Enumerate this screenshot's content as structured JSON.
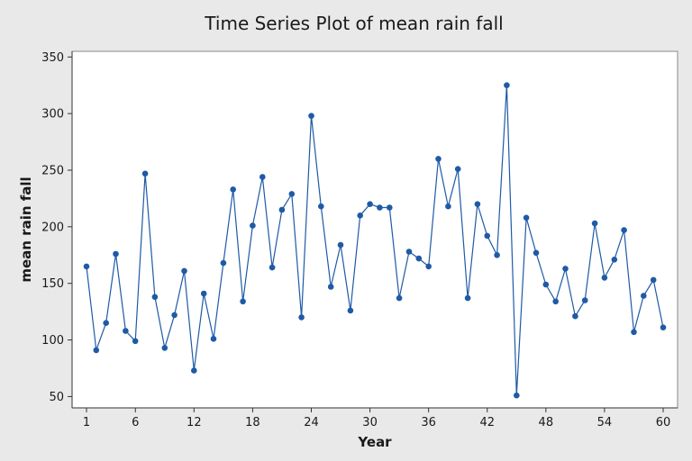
{
  "chart_data": {
    "type": "line",
    "title": "Time Series Plot of mean rain fall",
    "xlabel": "Year",
    "ylabel": "mean rain fall",
    "xlim": [
      1,
      60
    ],
    "ylim": [
      40,
      355
    ],
    "x_ticks": [
      1,
      6,
      12,
      18,
      24,
      30,
      36,
      42,
      48,
      54,
      60
    ],
    "y_ticks": [
      50,
      100,
      150,
      200,
      250,
      300,
      350
    ],
    "grid": false,
    "markers": true,
    "colors": {
      "series": "#1f5aa6",
      "marker": "#1f5aa6"
    },
    "series": [
      {
        "x": [
          1,
          2,
          3,
          4,
          5,
          6,
          7,
          8,
          9,
          10,
          11,
          12,
          13,
          14,
          15,
          16,
          17,
          18,
          19,
          20,
          21,
          22,
          23,
          24,
          25,
          26,
          27,
          28,
          29,
          30,
          31,
          32,
          33,
          34,
          35,
          36,
          37,
          38,
          39,
          40,
          41,
          42,
          43,
          44,
          45,
          46,
          47,
          48,
          49,
          50,
          51,
          52,
          53,
          54,
          55,
          56,
          57,
          58,
          59,
          60
        ],
        "values": [
          165,
          91,
          115,
          176,
          108,
          99,
          247,
          138,
          93,
          122,
          161,
          73,
          141,
          101,
          168,
          233,
          134,
          201,
          244,
          164,
          215,
          229,
          120,
          298,
          218,
          147,
          184,
          126,
          210,
          220,
          217,
          217,
          137,
          178,
          172,
          165,
          260,
          218,
          251,
          137,
          220,
          192,
          175,
          325,
          51,
          208,
          177,
          149,
          134,
          163,
          121,
          135,
          203,
          155,
          171,
          197,
          107,
          139,
          153,
          111
        ]
      }
    ]
  }
}
